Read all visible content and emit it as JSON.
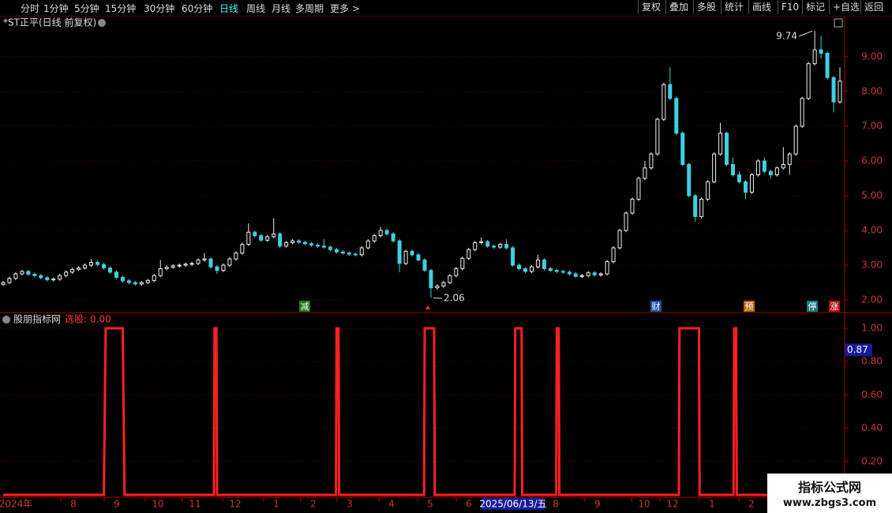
{
  "toolbar": {
    "periods": [
      "分时",
      "1分钟",
      "5分钟",
      "15分钟",
      "30分钟",
      "60分钟",
      "日线",
      "周线",
      "月线",
      "多周期",
      "更多 >"
    ],
    "buttons": [
      "复权",
      "叠加",
      "多股",
      "统计",
      "画线",
      "F10",
      "标记",
      "+自选",
      "返回"
    ]
  },
  "chart_data": [
    {
      "type": "candlestick",
      "title": "*ST正平(日线 前复权)",
      "up_color": "#f0f0f0",
      "down_color": "#3fd0e0",
      "ylim": [
        1.66,
        9.77
      ],
      "grid": true,
      "yticks": [
        {
          "value": 2,
          "label": "2.00"
        },
        {
          "value": 3,
          "label": "3.00"
        },
        {
          "value": 4,
          "label": "4.00"
        },
        {
          "value": 5,
          "label": "5.00"
        },
        {
          "value": 6,
          "label": "6.00"
        },
        {
          "value": 7,
          "label": "7.00"
        },
        {
          "value": 8,
          "label": "8.00"
        },
        {
          "value": 9,
          "label": "9.00"
        }
      ],
      "markers": [
        "减",
        "财",
        "预",
        "停",
        "涨"
      ],
      "candles": [
        [
          2.45,
          2.55,
          2.4,
          2.5
        ],
        [
          2.5,
          2.67,
          2.45,
          2.62
        ],
        [
          2.62,
          2.8,
          2.57,
          2.75
        ],
        [
          2.75,
          2.87,
          2.7,
          2.82
        ],
        [
          2.82,
          2.87,
          2.69,
          2.74
        ],
        [
          2.74,
          2.79,
          2.65,
          2.7
        ],
        [
          2.7,
          2.75,
          2.59,
          2.64
        ],
        [
          2.64,
          2.69,
          2.53,
          2.58
        ],
        [
          2.58,
          2.65,
          2.53,
          2.6
        ],
        [
          2.6,
          2.75,
          2.55,
          2.7
        ],
        [
          2.7,
          2.85,
          2.65,
          2.8
        ],
        [
          2.8,
          2.93,
          2.75,
          2.88
        ],
        [
          2.88,
          2.97,
          2.83,
          2.92
        ],
        [
          2.92,
          3.05,
          2.87,
          3.0
        ],
        [
          3.0,
          3.18,
          2.95,
          3.08
        ],
        [
          3.08,
          3.13,
          2.97,
          3.02
        ],
        [
          3.02,
          3.07,
          2.87,
          2.92
        ],
        [
          2.92,
          2.97,
          2.75,
          2.8
        ],
        [
          2.8,
          2.85,
          2.6,
          2.65
        ],
        [
          2.65,
          2.7,
          2.5,
          2.55
        ],
        [
          2.55,
          2.6,
          2.45,
          2.5
        ],
        [
          2.5,
          2.55,
          2.41,
          2.46
        ],
        [
          2.46,
          2.55,
          2.41,
          2.5
        ],
        [
          2.5,
          2.61,
          2.45,
          2.56
        ],
        [
          2.56,
          2.75,
          2.51,
          2.7
        ],
        [
          2.7,
          3.15,
          2.65,
          2.9
        ],
        [
          2.9,
          2.99,
          2.85,
          2.94
        ],
        [
          2.94,
          3.03,
          2.89,
          2.98
        ],
        [
          2.98,
          3.05,
          2.93,
          3.0
        ],
        [
          3.0,
          3.08,
          2.95,
          3.03
        ],
        [
          3.03,
          3.1,
          2.98,
          3.05
        ],
        [
          3.05,
          3.2,
          3.0,
          3.15
        ],
        [
          3.15,
          3.35,
          3.1,
          3.18
        ],
        [
          3.18,
          3.23,
          2.9,
          2.95
        ],
        [
          2.95,
          3.0,
          2.75,
          2.85
        ],
        [
          2.85,
          3.05,
          2.8,
          3.0
        ],
        [
          3.0,
          3.23,
          2.95,
          3.18
        ],
        [
          3.18,
          3.4,
          3.13,
          3.35
        ],
        [
          3.35,
          3.65,
          3.3,
          3.6
        ],
        [
          3.6,
          4.2,
          3.55,
          3.95
        ],
        [
          3.95,
          4.0,
          3.8,
          3.85
        ],
        [
          3.85,
          3.9,
          3.67,
          3.72
        ],
        [
          3.72,
          3.87,
          3.67,
          3.82
        ],
        [
          3.82,
          4.35,
          3.77,
          3.9
        ],
        [
          3.9,
          3.95,
          3.5,
          3.55
        ],
        [
          3.55,
          3.7,
          3.5,
          3.65
        ],
        [
          3.65,
          3.75,
          3.6,
          3.7
        ],
        [
          3.7,
          3.75,
          3.61,
          3.66
        ],
        [
          3.66,
          3.71,
          3.57,
          3.62
        ],
        [
          3.62,
          3.67,
          3.53,
          3.58
        ],
        [
          3.58,
          3.63,
          3.5,
          3.55
        ],
        [
          3.55,
          3.75,
          3.47,
          3.52
        ],
        [
          3.52,
          3.57,
          3.4,
          3.45
        ],
        [
          3.45,
          3.5,
          3.33,
          3.38
        ],
        [
          3.38,
          3.43,
          3.3,
          3.35
        ],
        [
          3.35,
          3.4,
          3.27,
          3.32
        ],
        [
          3.32,
          3.37,
          3.25,
          3.3
        ],
        [
          3.3,
          3.55,
          3.25,
          3.5
        ],
        [
          3.5,
          3.75,
          3.45,
          3.7
        ],
        [
          3.7,
          3.9,
          3.65,
          3.85
        ],
        [
          3.85,
          4.1,
          3.8,
          4.0
        ],
        [
          4.0,
          4.05,
          3.85,
          3.9
        ],
        [
          3.9,
          3.95,
          3.65,
          3.7
        ],
        [
          3.7,
          3.75,
          2.8,
          3.05
        ],
        [
          3.05,
          3.45,
          3.0,
          3.4
        ],
        [
          3.4,
          3.45,
          3.25,
          3.3
        ],
        [
          3.3,
          3.35,
          3.1,
          3.15
        ],
        [
          3.15,
          3.2,
          2.8,
          2.85
        ],
        [
          2.85,
          2.9,
          2.06,
          2.35
        ],
        [
          2.35,
          2.45,
          2.3,
          2.4
        ],
        [
          2.4,
          2.55,
          2.35,
          2.5
        ],
        [
          2.5,
          2.75,
          2.45,
          2.7
        ],
        [
          2.7,
          2.95,
          2.65,
          2.9
        ],
        [
          2.9,
          3.25,
          2.85,
          3.2
        ],
        [
          3.2,
          3.5,
          3.15,
          3.45
        ],
        [
          3.45,
          3.7,
          3.4,
          3.65
        ],
        [
          3.65,
          3.8,
          3.6,
          3.68
        ],
        [
          3.68,
          3.73,
          3.5,
          3.55
        ],
        [
          3.55,
          3.6,
          3.47,
          3.52
        ],
        [
          3.52,
          3.65,
          3.47,
          3.6
        ],
        [
          3.6,
          3.75,
          3.45,
          3.5
        ],
        [
          3.5,
          3.55,
          2.95,
          3.0
        ],
        [
          3.0,
          3.05,
          2.85,
          2.9
        ],
        [
          2.9,
          2.95,
          2.77,
          2.82
        ],
        [
          2.82,
          3.0,
          2.77,
          2.95
        ],
        [
          2.95,
          3.3,
          2.9,
          3.15
        ],
        [
          3.15,
          3.2,
          2.85,
          2.9
        ],
        [
          2.9,
          2.95,
          2.8,
          2.85
        ],
        [
          2.85,
          2.9,
          2.77,
          2.82
        ],
        [
          2.82,
          2.87,
          2.75,
          2.8
        ],
        [
          2.8,
          2.85,
          2.7,
          2.75
        ],
        [
          2.75,
          2.8,
          2.63,
          2.68
        ],
        [
          2.68,
          2.75,
          2.63,
          2.7
        ],
        [
          2.7,
          2.83,
          2.65,
          2.78
        ],
        [
          2.78,
          2.83,
          2.67,
          2.72
        ],
        [
          2.72,
          2.8,
          2.67,
          2.75
        ],
        [
          2.75,
          3.15,
          2.7,
          3.1
        ],
        [
          3.1,
          3.55,
          3.05,
          3.5
        ],
        [
          3.5,
          4.05,
          3.45,
          4.0
        ],
        [
          4.0,
          4.55,
          3.95,
          4.5
        ],
        [
          4.5,
          4.95,
          4.45,
          4.9
        ],
        [
          4.9,
          5.55,
          4.85,
          5.5
        ],
        [
          5.5,
          6.0,
          5.45,
          5.8
        ],
        [
          5.8,
          6.25,
          5.75,
          6.2
        ],
        [
          6.2,
          7.25,
          6.15,
          7.2
        ],
        [
          7.2,
          8.25,
          7.15,
          8.2
        ],
        [
          8.2,
          8.7,
          7.75,
          7.8
        ],
        [
          7.8,
          7.85,
          6.75,
          6.8
        ],
        [
          6.8,
          6.85,
          5.85,
          5.9
        ],
        [
          5.9,
          5.95,
          4.95,
          5.0
        ],
        [
          5.0,
          5.05,
          4.25,
          4.4
        ],
        [
          4.4,
          4.95,
          4.35,
          4.9
        ],
        [
          4.9,
          5.45,
          4.85,
          5.4
        ],
        [
          5.4,
          6.25,
          5.35,
          6.2
        ],
        [
          6.2,
          7.1,
          6.15,
          6.8
        ],
        [
          6.8,
          6.85,
          5.85,
          5.9
        ],
        [
          5.9,
          6.1,
          5.55,
          5.6
        ],
        [
          5.6,
          5.7,
          5.35,
          5.4
        ],
        [
          5.4,
          5.45,
          4.9,
          5.1
        ],
        [
          5.1,
          5.65,
          5.05,
          5.6
        ],
        [
          5.6,
          6.05,
          5.55,
          6.0
        ],
        [
          6.0,
          6.1,
          5.65,
          5.7
        ],
        [
          5.7,
          5.75,
          5.5,
          5.6
        ],
        [
          5.6,
          5.85,
          5.55,
          5.8
        ],
        [
          5.8,
          6.4,
          5.75,
          5.9
        ],
        [
          5.9,
          6.25,
          5.6,
          6.2
        ],
        [
          6.2,
          7.05,
          6.15,
          7.0
        ],
        [
          7.0,
          7.85,
          6.95,
          7.8
        ],
        [
          7.8,
          8.85,
          7.75,
          8.8
        ],
        [
          8.8,
          9.74,
          8.75,
          9.2
        ],
        [
          9.2,
          9.6,
          8.95,
          9.1
        ],
        [
          9.1,
          9.15,
          8.35,
          8.4
        ],
        [
          8.4,
          8.45,
          7.4,
          7.7
        ],
        [
          7.7,
          8.7,
          7.65,
          8.3
        ]
      ]
    },
    {
      "type": "line",
      "title": "股朋指标网",
      "readout_label": "选股:",
      "readout": {
        "value": 0,
        "label": "0.00"
      },
      "color": "#ff2020",
      "xlim": [
        -0.5,
        133.5
      ],
      "ylim": [
        0,
        1.085
      ],
      "grid": true,
      "yticks": [
        {
          "value": 0.2,
          "label": "0.20"
        },
        {
          "value": 0.4,
          "label": "0.40"
        },
        {
          "value": 0.6,
          "label": "0.60"
        },
        {
          "value": 0.8,
          "label": "0.80"
        },
        {
          "value": 1,
          "label": "1.00"
        }
      ],
      "cursor": {
        "value": 0.87,
        "label": "0.87"
      },
      "x": [
        0,
        16,
        16.3,
        19,
        19.3,
        33.5,
        33.6,
        33.9,
        34,
        52.9,
        53,
        53.3,
        53.4,
        66.9,
        67,
        68.5,
        68.6,
        81.3,
        81.4,
        82.4,
        82.5,
        87.9,
        88,
        88.3,
        88.4,
        107.4,
        107.5,
        110.6,
        110.7,
        116.1,
        116.2,
        116.5,
        116.6,
        133.5
      ],
      "values": [
        0,
        0,
        1,
        1,
        0,
        0,
        1,
        1,
        0,
        0,
        1,
        1,
        0,
        0,
        1,
        1,
        0,
        0,
        1,
        1,
        0,
        0,
        1,
        1,
        0,
        0,
        1,
        1,
        0,
        0,
        1,
        1,
        0,
        0
      ]
    }
  ],
  "time_axis": {
    "labels": [
      "2024年",
      "8",
      "9",
      "10",
      "11",
      "12",
      "1",
      "2",
      "3",
      "4",
      "5",
      "6",
      "2025/06/13/五",
      "8",
      "9",
      "10",
      "12",
      "1",
      "2"
    ]
  },
  "watermark": {
    "title": "指标公式网",
    "url": "www.zbgs3.com"
  }
}
